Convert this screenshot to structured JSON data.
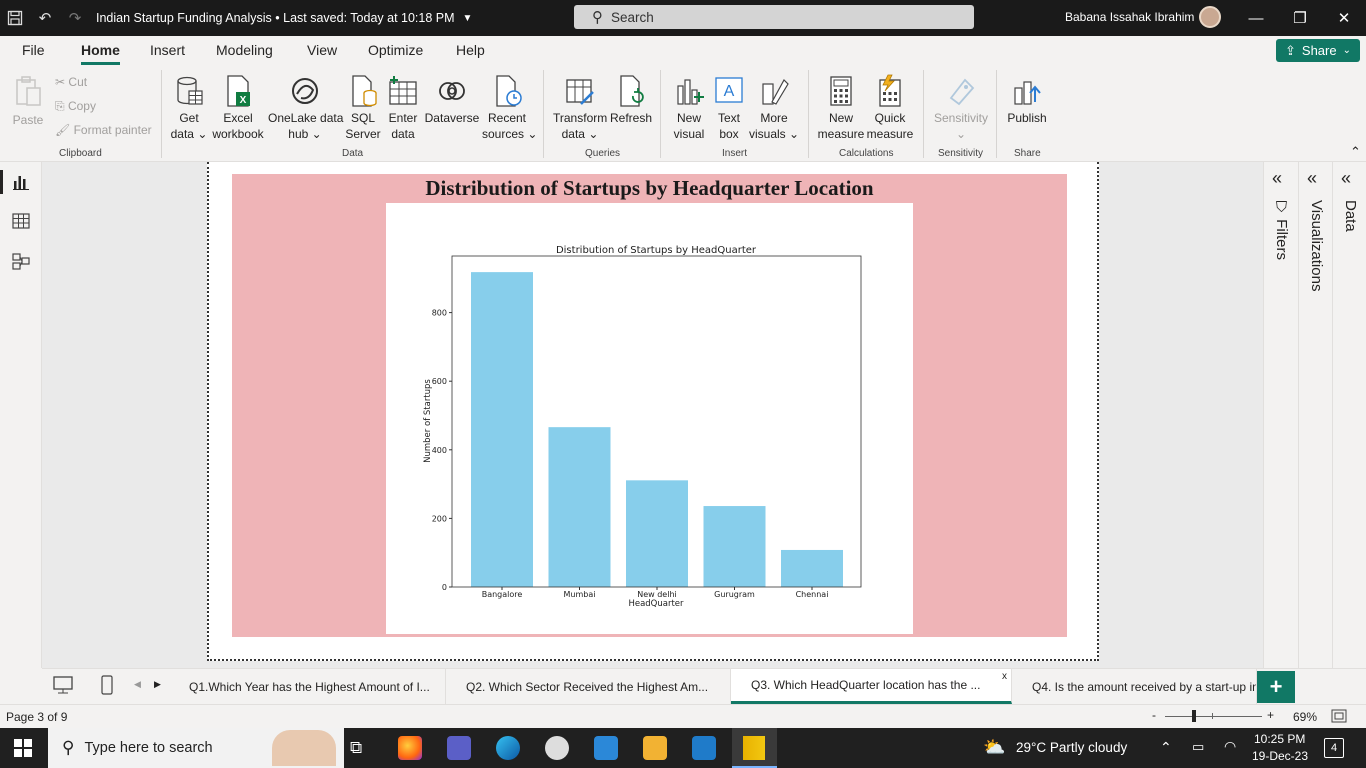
{
  "titlebar": {
    "title": "Indian Startup Funding Analysis • Last saved: Today at 10:18 PM",
    "search_placeholder": "Search",
    "user_name": "Babana Issahak Ibrahim"
  },
  "menu": {
    "items": [
      "File",
      "Home",
      "Insert",
      "Modeling",
      "View",
      "Optimize",
      "Help"
    ],
    "active": "Home",
    "share_label": "Share"
  },
  "ribbon": {
    "clipboard": {
      "paste": "Paste",
      "cut": "Cut",
      "copy": "Copy",
      "format_painter": "Format painter",
      "label": "Clipboard"
    },
    "data": {
      "get_data": [
        "Get",
        "data ⌄"
      ],
      "excel": [
        "Excel",
        "workbook"
      ],
      "onelake": [
        "OneLake data",
        "hub ⌄"
      ],
      "sql": [
        "SQL",
        "Server"
      ],
      "enter": [
        "Enter",
        "data"
      ],
      "dataverse": [
        "Dataverse",
        ""
      ],
      "recent": [
        "Recent",
        "sources ⌄"
      ],
      "label": "Data"
    },
    "queries": {
      "transform": [
        "Transform",
        "data ⌄"
      ],
      "refresh": [
        "Refresh",
        ""
      ],
      "label": "Queries"
    },
    "insert": {
      "new_visual": [
        "New",
        "visual"
      ],
      "text_box": [
        "Text",
        "box"
      ],
      "more_visuals": [
        "More",
        "visuals ⌄"
      ],
      "label": "Insert"
    },
    "calculations": {
      "new_measure": [
        "New",
        "measure"
      ],
      "quick_measure": [
        "Quick",
        "measure"
      ],
      "label": "Calculations"
    },
    "sensitivity": {
      "button": [
        "Sensitivity",
        "⌄"
      ],
      "label": "Sensitivity"
    },
    "share": {
      "publish": [
        "Publish",
        ""
      ],
      "label": "Share"
    }
  },
  "panel": {
    "title": "Distribution of Startups by Headquarter Location"
  },
  "chart_data": {
    "type": "bar",
    "title": "Distribution of Startups by HeadQuarter",
    "xlabel": "HeadQuarter",
    "ylabel": "Number of Startups",
    "categories": [
      "Bangalore",
      "Mumbai",
      "New delhi",
      "Gurugram",
      "Chennai"
    ],
    "values": [
      918,
      466,
      311,
      236,
      108
    ],
    "yticks": [
      0,
      200,
      400,
      600,
      800
    ],
    "ylim": [
      0,
      965
    ],
    "bar_color": "#87ceeb",
    "grid": false
  },
  "right_panes": {
    "filters": "Filters",
    "visualizations": "Visualizations",
    "data": "Data"
  },
  "page_tabs": {
    "tabs": [
      "Q1.Which Year has the Highest Amount of I...",
      "Q2. Which Sector Received the Highest Am...",
      "Q3. Which HeadQuarter location has the ...",
      "Q4. Is the amount received by a start-up in"
    ],
    "active_index": 2,
    "close_glyph": "x"
  },
  "status": {
    "page": "Page 3 of 9",
    "zoom": "69%"
  },
  "taskbar": {
    "search_placeholder": "Type here to search",
    "weather": "29°C  Partly cloudy",
    "time": "10:25 PM",
    "date": "19-Dec-23",
    "notifications": "4"
  },
  "colors": {
    "accent": "#117865",
    "panel_bg": "#efb4b7",
    "bar": "#87ceeb"
  }
}
